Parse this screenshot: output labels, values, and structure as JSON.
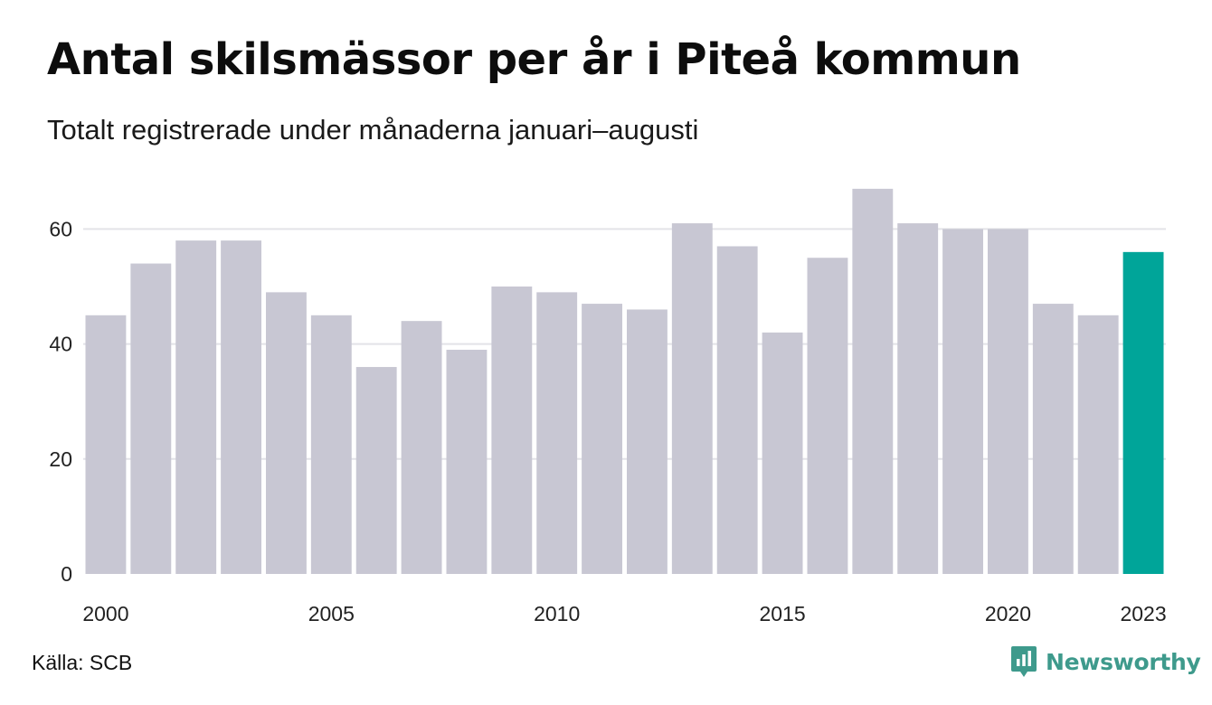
{
  "header": {
    "title": "Antal skilsmässor per år i Piteå kommun",
    "subtitle": "Totalt registrerade under månaderna januari–augusti"
  },
  "footer": {
    "source": "Källa: SCB",
    "brand": "Newsworthy",
    "brand_icon": "newsworthy-logo-icon"
  },
  "colors": {
    "bar": "#c8c7d3",
    "highlight": "#00a599",
    "grid": "#e3e3e8",
    "brand": "#3e9a8c"
  },
  "chart_data": {
    "type": "bar",
    "categories": [
      "2000",
      "2001",
      "2002",
      "2003",
      "2004",
      "2005",
      "2006",
      "2007",
      "2008",
      "2009",
      "2010",
      "2011",
      "2012",
      "2013",
      "2014",
      "2015",
      "2016",
      "2017",
      "2018",
      "2019",
      "2020",
      "2021",
      "2022",
      "2023"
    ],
    "values": [
      45,
      54,
      58,
      58,
      49,
      45,
      36,
      44,
      39,
      50,
      49,
      47,
      46,
      61,
      57,
      42,
      55,
      67,
      61,
      60,
      60,
      47,
      45,
      56
    ],
    "highlight_category": "2023",
    "xtick_labels": [
      "2000",
      "2005",
      "2010",
      "2015",
      "2020",
      "2023"
    ],
    "yticks": [
      0,
      20,
      40,
      60
    ],
    "ylim": [
      0,
      70
    ],
    "grid": true,
    "title": "Antal skilsmässor per år i Piteå kommun",
    "subtitle": "Totalt registrerade under månaderna januari–augusti",
    "xlabel": "",
    "ylabel": ""
  }
}
